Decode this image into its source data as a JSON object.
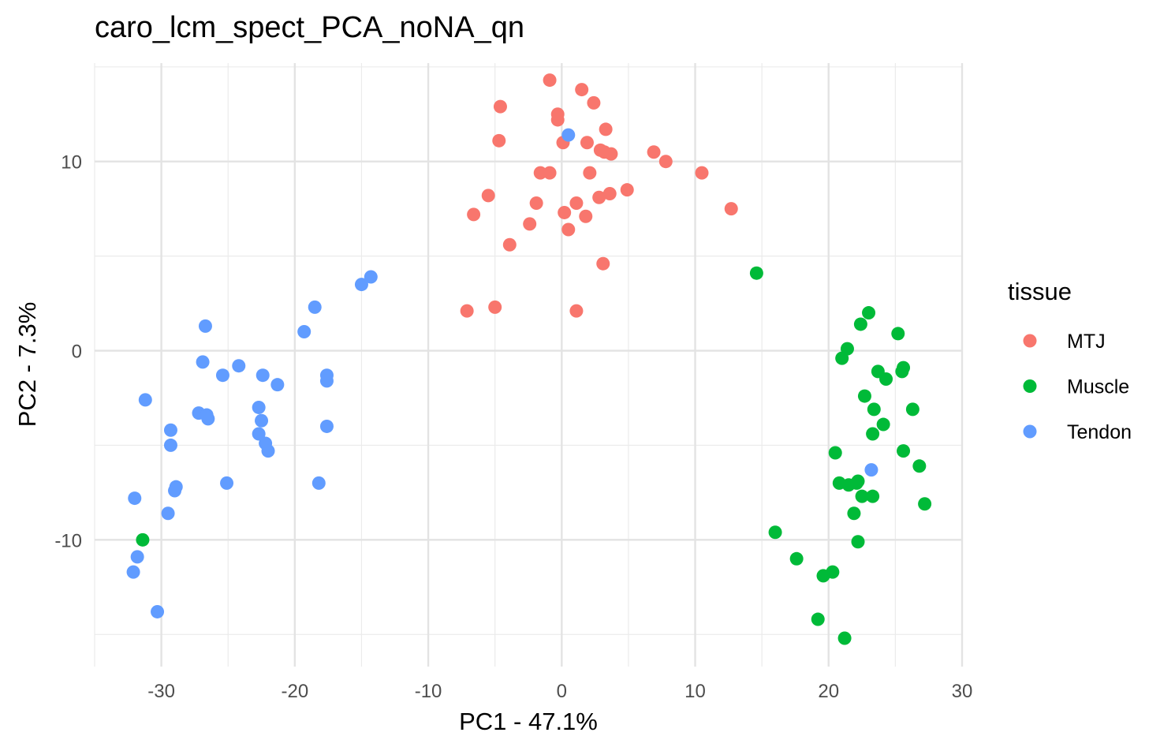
{
  "chart_data": {
    "type": "scatter",
    "title": "caro_lcm_spect_PCA_noNA_qn",
    "xlabel": "PC1 - 47.1%",
    "ylabel": "PC2 - 7.3%",
    "xlim": [
      -35,
      30
    ],
    "ylim": [
      -16.7,
      15.2
    ],
    "x_ticks": [
      -30,
      -20,
      -10,
      0,
      10,
      20,
      30
    ],
    "y_ticks": [
      -10,
      0,
      10
    ],
    "x_tick_labels": [
      "-30",
      "-20",
      "-10",
      "0",
      "10",
      "20",
      "30"
    ],
    "y_tick_labels": [
      "-10",
      "0",
      "10"
    ],
    "grid": true,
    "legend": {
      "title": "tissue",
      "position": "right"
    },
    "series": [
      {
        "name": "MTJ",
        "color": "#F8766D",
        "points": [
          [
            -0.9,
            14.3
          ],
          [
            1.5,
            13.8
          ],
          [
            -4.6,
            12.9
          ],
          [
            2.4,
            13.1
          ],
          [
            -0.3,
            12.5
          ],
          [
            -0.3,
            12.2
          ],
          [
            3.3,
            11.7
          ],
          [
            -4.7,
            11.1
          ],
          [
            0.1,
            11.0
          ],
          [
            1.9,
            11.0
          ],
          [
            2.9,
            10.6
          ],
          [
            3.2,
            10.5
          ],
          [
            3.7,
            10.4
          ],
          [
            6.9,
            10.5
          ],
          [
            7.8,
            10.0
          ],
          [
            -1.6,
            9.4
          ],
          [
            -0.9,
            9.4
          ],
          [
            2.1,
            9.4
          ],
          [
            10.5,
            9.4
          ],
          [
            4.9,
            8.5
          ],
          [
            3.6,
            8.3
          ],
          [
            2.8,
            8.1
          ],
          [
            -5.5,
            8.2
          ],
          [
            -1.9,
            7.8
          ],
          [
            1.1,
            7.8
          ],
          [
            0.2,
            7.3
          ],
          [
            12.7,
            7.5
          ],
          [
            -6.6,
            7.2
          ],
          [
            1.8,
            7.1
          ],
          [
            -2.4,
            6.7
          ],
          [
            0.5,
            6.4
          ],
          [
            -3.9,
            5.6
          ],
          [
            3.1,
            4.6
          ],
          [
            -7.1,
            2.1
          ],
          [
            -5.0,
            2.3
          ],
          [
            1.1,
            2.1
          ]
        ]
      },
      {
        "name": "Muscle",
        "color": "#00BA38",
        "points": [
          [
            14.6,
            4.1
          ],
          [
            23.0,
            2.0
          ],
          [
            22.4,
            1.4
          ],
          [
            25.2,
            0.9
          ],
          [
            21.4,
            0.1
          ],
          [
            21.0,
            -0.4
          ],
          [
            25.6,
            -0.9
          ],
          [
            23.7,
            -1.1
          ],
          [
            25.5,
            -1.1
          ],
          [
            24.3,
            -1.5
          ],
          [
            22.7,
            -2.4
          ],
          [
            23.4,
            -3.1
          ],
          [
            26.3,
            -3.1
          ],
          [
            24.1,
            -3.9
          ],
          [
            23.3,
            -4.4
          ],
          [
            20.5,
            -5.4
          ],
          [
            25.6,
            -5.3
          ],
          [
            26.8,
            -6.1
          ],
          [
            20.8,
            -7.0
          ],
          [
            21.5,
            -7.1
          ],
          [
            22.2,
            -6.9
          ],
          [
            22.1,
            -7.0
          ],
          [
            22.5,
            -7.7
          ],
          [
            23.3,
            -7.7
          ],
          [
            27.2,
            -8.1
          ],
          [
            21.9,
            -8.6
          ],
          [
            22.2,
            -10.1
          ],
          [
            16.0,
            -9.6
          ],
          [
            17.6,
            -11.0
          ],
          [
            20.3,
            -11.7
          ],
          [
            19.6,
            -11.9
          ],
          [
            19.2,
            -14.2
          ],
          [
            21.2,
            -15.2
          ],
          [
            -31.4,
            -10.0
          ]
        ]
      },
      {
        "name": "Tendon",
        "color": "#619CFF",
        "points": [
          [
            0.5,
            11.4
          ],
          [
            -14.3,
            3.9
          ],
          [
            -15.0,
            3.5
          ],
          [
            -18.5,
            2.3
          ],
          [
            -19.3,
            1.0
          ],
          [
            -26.7,
            1.3
          ],
          [
            -26.9,
            -0.6
          ],
          [
            -24.2,
            -0.8
          ],
          [
            -25.4,
            -1.3
          ],
          [
            -22.4,
            -1.3
          ],
          [
            -21.3,
            -1.8
          ],
          [
            -17.6,
            -1.3
          ],
          [
            -17.6,
            -1.6
          ],
          [
            -31.2,
            -2.6
          ],
          [
            -22.7,
            -3.0
          ],
          [
            -27.2,
            -3.3
          ],
          [
            -26.6,
            -3.4
          ],
          [
            -26.5,
            -3.6
          ],
          [
            -22.5,
            -3.7
          ],
          [
            -22.7,
            -4.4
          ],
          [
            -29.3,
            -4.2
          ],
          [
            -29.3,
            -5.0
          ],
          [
            -22.2,
            -4.9
          ],
          [
            -22.0,
            -5.3
          ],
          [
            -17.6,
            -4.0
          ],
          [
            -25.1,
            -7.0
          ],
          [
            -18.2,
            -7.0
          ],
          [
            -28.9,
            -7.2
          ],
          [
            -29.0,
            -7.4
          ],
          [
            -32.0,
            -7.8
          ],
          [
            -29.5,
            -8.6
          ],
          [
            -31.8,
            -10.9
          ],
          [
            -32.1,
            -11.7
          ],
          [
            -30.3,
            -13.8
          ],
          [
            23.2,
            -6.3
          ]
        ]
      }
    ]
  }
}
